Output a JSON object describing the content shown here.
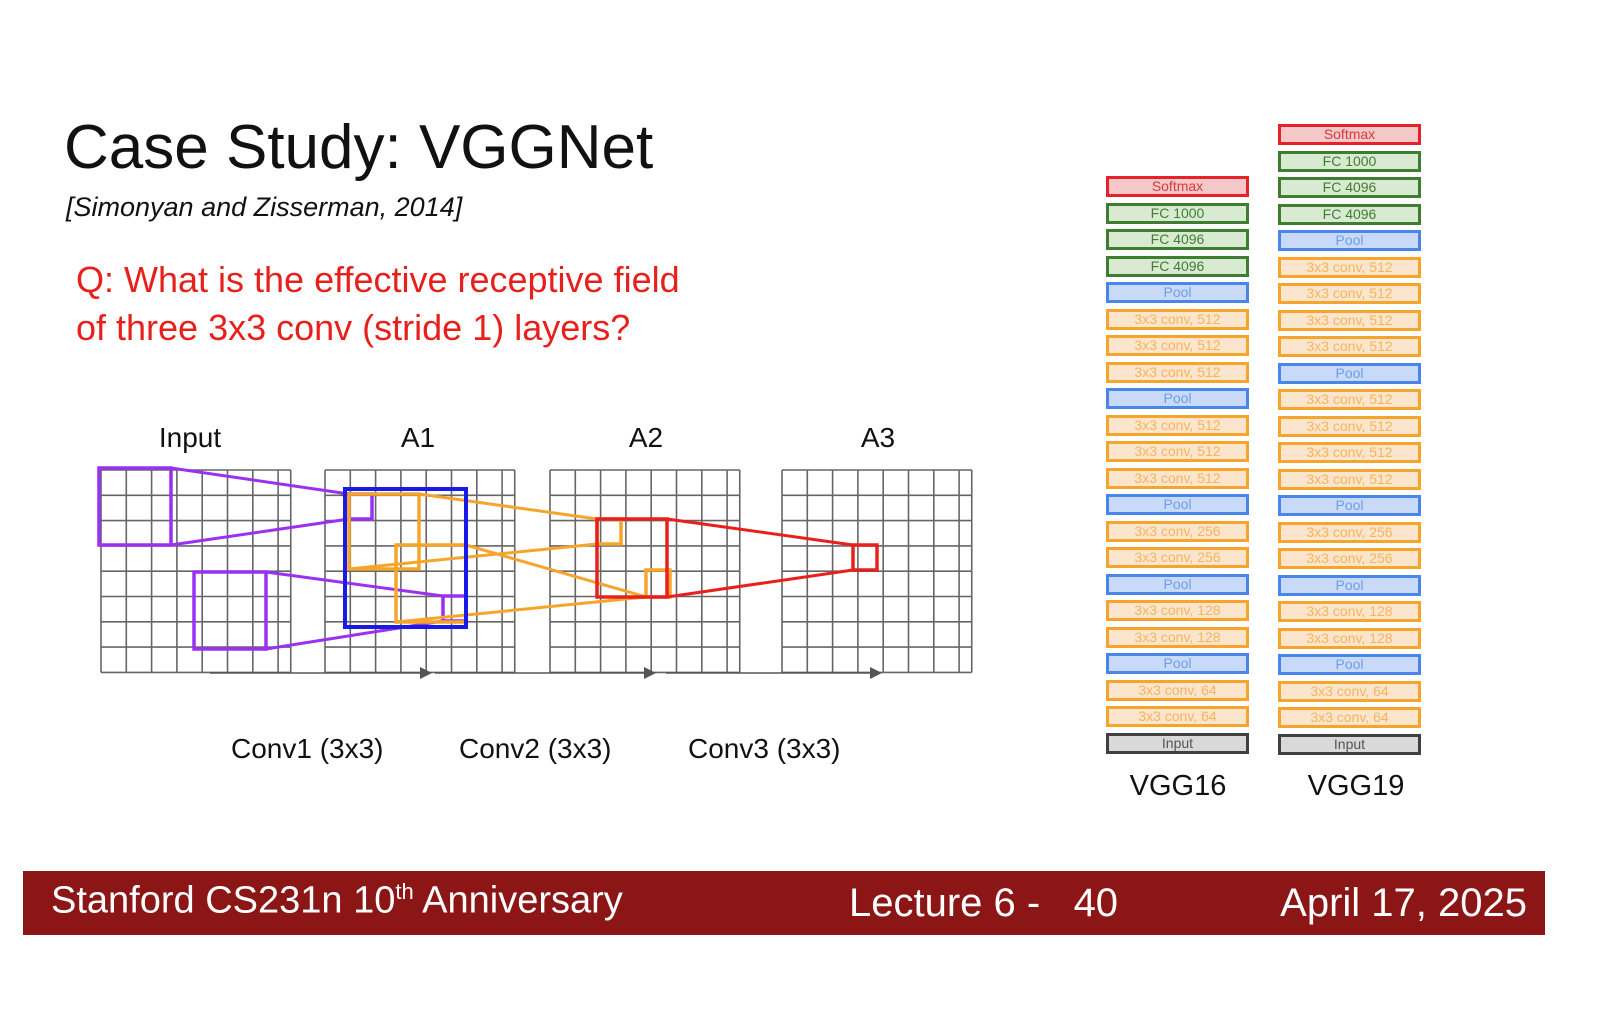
{
  "slide": {
    "title": "Case Study: VGGNet",
    "citation": "[Simonyan and Zisserman, 2014]",
    "question_lines": [
      "Q: What is the effective receptive field",
      "of three 3x3 conv (stride 1) layers?"
    ]
  },
  "diagram": {
    "grid_labels": [
      "Input",
      "A1",
      "A2",
      "A3"
    ],
    "conv_labels": [
      "Conv1 (3x3)",
      "Conv2 (3x3)",
      "Conv3 (3x3)"
    ],
    "colors": {
      "conv1": "#9b30f0",
      "conv2": "#f6a52c",
      "conv3": "#e8201c",
      "a1_highlight": "#1a1ae6",
      "grid": "#666666"
    }
  },
  "networks": [
    {
      "name": "VGG16",
      "layers": [
        {
          "label": "Softmax",
          "kind": "softmax"
        },
        {
          "label": "FC 1000",
          "kind": "fc"
        },
        {
          "label": "FC 4096",
          "kind": "fc"
        },
        {
          "label": "FC 4096",
          "kind": "fc"
        },
        {
          "label": "Pool",
          "kind": "pool"
        },
        {
          "label": "3x3 conv, 512",
          "kind": "conv"
        },
        {
          "label": "3x3 conv, 512",
          "kind": "conv"
        },
        {
          "label": "3x3 conv, 512",
          "kind": "conv"
        },
        {
          "label": "Pool",
          "kind": "pool"
        },
        {
          "label": "3x3 conv, 512",
          "kind": "conv"
        },
        {
          "label": "3x3 conv, 512",
          "kind": "conv"
        },
        {
          "label": "3x3 conv, 512",
          "kind": "conv"
        },
        {
          "label": "Pool",
          "kind": "pool"
        },
        {
          "label": "3x3 conv, 256",
          "kind": "conv"
        },
        {
          "label": "3x3 conv, 256",
          "kind": "conv"
        },
        {
          "label": "Pool",
          "kind": "pool"
        },
        {
          "label": "3x3 conv, 128",
          "kind": "conv"
        },
        {
          "label": "3x3 conv, 128",
          "kind": "conv"
        },
        {
          "label": "Pool",
          "kind": "pool"
        },
        {
          "label": "3x3 conv, 64",
          "kind": "conv"
        },
        {
          "label": "3x3 conv, 64",
          "kind": "conv"
        },
        {
          "label": "Input",
          "kind": "input"
        }
      ]
    },
    {
      "name": "VGG19",
      "layers": [
        {
          "label": "Softmax",
          "kind": "softmax"
        },
        {
          "label": "FC 1000",
          "kind": "fc"
        },
        {
          "label": "FC 4096",
          "kind": "fc"
        },
        {
          "label": "FC 4096",
          "kind": "fc"
        },
        {
          "label": "Pool",
          "kind": "pool"
        },
        {
          "label": "3x3 conv, 512",
          "kind": "conv"
        },
        {
          "label": "3x3 conv, 512",
          "kind": "conv"
        },
        {
          "label": "3x3 conv, 512",
          "kind": "conv"
        },
        {
          "label": "3x3 conv, 512",
          "kind": "conv"
        },
        {
          "label": "Pool",
          "kind": "pool"
        },
        {
          "label": "3x3 conv, 512",
          "kind": "conv"
        },
        {
          "label": "3x3 conv, 512",
          "kind": "conv"
        },
        {
          "label": "3x3 conv, 512",
          "kind": "conv"
        },
        {
          "label": "3x3 conv, 512",
          "kind": "conv"
        },
        {
          "label": "Pool",
          "kind": "pool"
        },
        {
          "label": "3x3 conv, 256",
          "kind": "conv"
        },
        {
          "label": "3x3 conv, 256",
          "kind": "conv"
        },
        {
          "label": "Pool",
          "kind": "pool"
        },
        {
          "label": "3x3 conv, 128",
          "kind": "conv"
        },
        {
          "label": "3x3 conv, 128",
          "kind": "conv"
        },
        {
          "label": "Pool",
          "kind": "pool"
        },
        {
          "label": "3x3 conv, 64",
          "kind": "conv"
        },
        {
          "label": "3x3 conv, 64",
          "kind": "conv"
        },
        {
          "label": "Input",
          "kind": "input"
        }
      ]
    }
  ],
  "footer": {
    "course": "Stanford CS231n 10",
    "course_sup": "th",
    "course_suffix": " Anniversary",
    "lecture": "Lecture 6 -",
    "page": "40",
    "date": "April 17, 2025"
  }
}
